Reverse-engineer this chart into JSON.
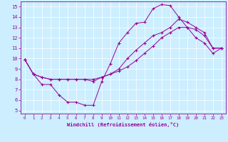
{
  "xlabel": "Windchill (Refroidissement éolien,°C)",
  "bg_color": "#cceeff",
  "line_color": "#990099",
  "grid_color": "#ffffff",
  "xlim": [
    -0.5,
    23.5
  ],
  "ylim": [
    4.7,
    15.5
  ],
  "xticks": [
    0,
    1,
    2,
    3,
    4,
    5,
    6,
    7,
    8,
    9,
    10,
    11,
    12,
    13,
    14,
    15,
    16,
    17,
    18,
    19,
    20,
    21,
    22,
    23
  ],
  "yticks": [
    5,
    6,
    7,
    8,
    9,
    10,
    11,
    12,
    13,
    14,
    15
  ],
  "series1": [
    [
      0,
      9.9
    ],
    [
      1,
      8.5
    ],
    [
      2,
      7.5
    ],
    [
      3,
      7.5
    ],
    [
      4,
      6.5
    ],
    [
      5,
      5.8
    ],
    [
      6,
      5.8
    ],
    [
      7,
      5.5
    ],
    [
      8,
      5.5
    ],
    [
      9,
      7.8
    ],
    [
      10,
      9.5
    ],
    [
      11,
      11.5
    ],
    [
      12,
      12.5
    ],
    [
      13,
      13.4
    ],
    [
      14,
      13.5
    ],
    [
      15,
      14.8
    ],
    [
      16,
      15.2
    ],
    [
      17,
      15.1
    ],
    [
      18,
      14.0
    ],
    [
      19,
      13.0
    ],
    [
      20,
      12.0
    ],
    [
      21,
      11.5
    ],
    [
      22,
      10.5
    ],
    [
      23,
      11.0
    ]
  ],
  "series2": [
    [
      0,
      9.9
    ],
    [
      1,
      8.5
    ],
    [
      2,
      8.2
    ],
    [
      3,
      8.0
    ],
    [
      4,
      8.0
    ],
    [
      5,
      8.0
    ],
    [
      6,
      8.0
    ],
    [
      7,
      8.0
    ],
    [
      8,
      7.8
    ],
    [
      9,
      8.2
    ],
    [
      10,
      8.5
    ],
    [
      11,
      8.8
    ],
    [
      12,
      9.2
    ],
    [
      13,
      9.8
    ],
    [
      14,
      10.5
    ],
    [
      15,
      11.2
    ],
    [
      16,
      12.0
    ],
    [
      17,
      12.5
    ],
    [
      18,
      13.0
    ],
    [
      19,
      13.0
    ],
    [
      20,
      12.8
    ],
    [
      21,
      12.2
    ],
    [
      22,
      11.0
    ],
    [
      23,
      11.0
    ]
  ],
  "series3": [
    [
      0,
      9.9
    ],
    [
      1,
      8.5
    ],
    [
      2,
      8.2
    ],
    [
      3,
      8.0
    ],
    [
      4,
      8.0
    ],
    [
      5,
      8.0
    ],
    [
      6,
      8.0
    ],
    [
      7,
      8.0
    ],
    [
      8,
      8.0
    ],
    [
      9,
      8.2
    ],
    [
      10,
      8.5
    ],
    [
      11,
      9.0
    ],
    [
      12,
      10.0
    ],
    [
      13,
      10.8
    ],
    [
      14,
      11.5
    ],
    [
      15,
      12.2
    ],
    [
      16,
      12.5
    ],
    [
      17,
      13.0
    ],
    [
      18,
      13.8
    ],
    [
      19,
      13.5
    ],
    [
      20,
      13.0
    ],
    [
      21,
      12.5
    ],
    [
      22,
      11.0
    ],
    [
      23,
      11.0
    ]
  ]
}
